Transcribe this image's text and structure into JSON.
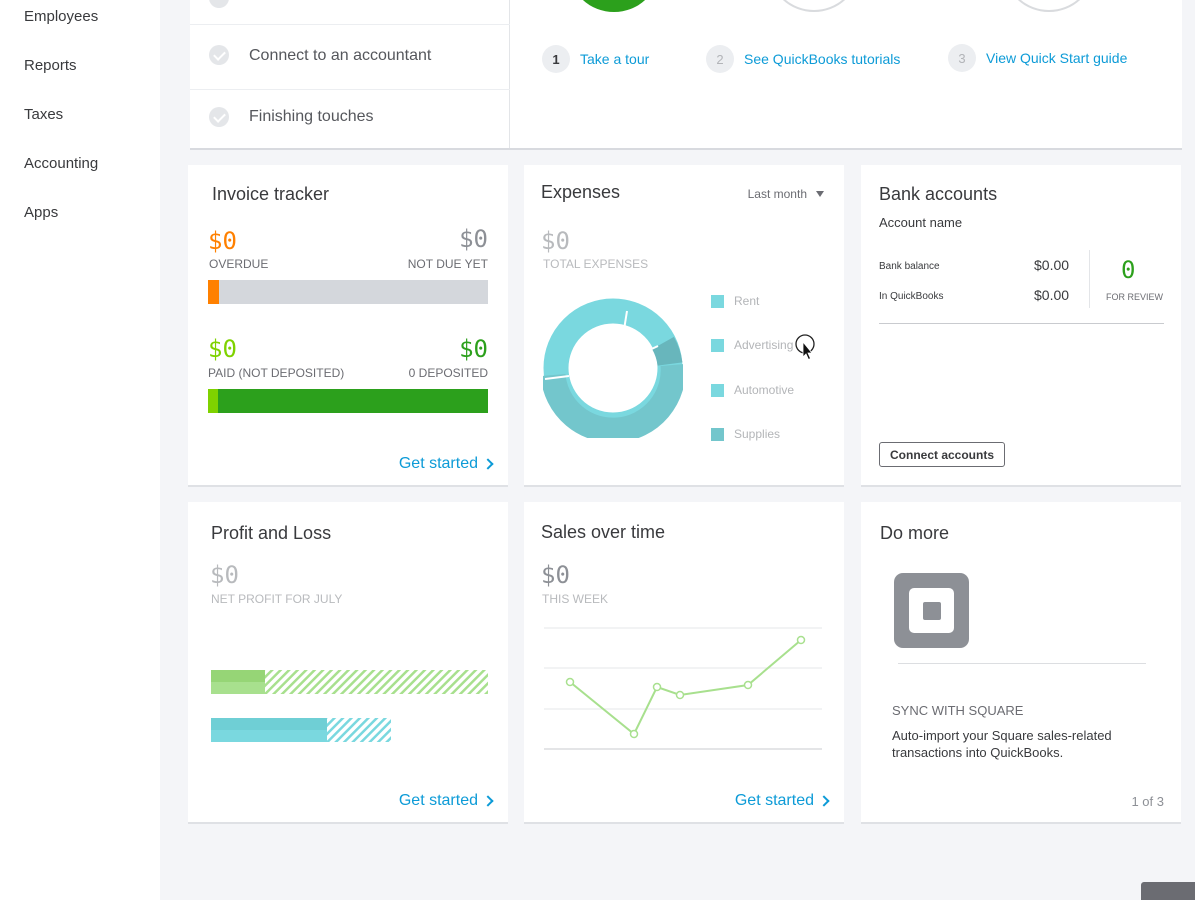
{
  "sidebar": {
    "items": [
      {
        "label": "Employees"
      },
      {
        "label": "Reports"
      },
      {
        "label": "Taxes"
      },
      {
        "label": "Accounting"
      },
      {
        "label": "Apps"
      }
    ]
  },
  "setup": {
    "tasks": [
      {
        "label": "Connect to an accountant"
      },
      {
        "label": "Finishing touches"
      }
    ],
    "steps": [
      {
        "num": "1",
        "label": "Take a tour"
      },
      {
        "num": "2",
        "label": "See QuickBooks tutorials"
      },
      {
        "num": "3",
        "label": "View Quick Start guide"
      }
    ]
  },
  "invoice": {
    "title": "Invoice tracker",
    "overdue_amount": "$0",
    "overdue_label": "OVERDUE",
    "notdue_amount": "$0",
    "notdue_label": "NOT DUE YET",
    "paid_amount": "$0",
    "paid_label": "PAID (NOT DEPOSITED)",
    "deposited_amount": "$0",
    "deposited_label": "0 DEPOSITED",
    "get_started": "Get started",
    "colors": {
      "overdue": "#ff8000",
      "paid": "#2ca01c",
      "light_green": "#7fd200"
    }
  },
  "expenses": {
    "title": "Expenses",
    "period": "Last month",
    "amount": "$0",
    "amount_label": "TOTAL EXPENSES",
    "legend": [
      {
        "label": "Rent",
        "color": "#7ad8df"
      },
      {
        "label": "Advertising",
        "color": "#7ad8df"
      },
      {
        "label": "Automotive",
        "color": "#7ad8df"
      },
      {
        "label": "Supplies",
        "color": "#73c6cc"
      }
    ]
  },
  "bank": {
    "title": "Bank accounts",
    "account_header": "Account name",
    "bank_balance_label": "Bank balance",
    "bank_balance": "$0.00",
    "in_qb_label": "In QuickBooks",
    "in_qb": "$0.00",
    "review_count": "0",
    "review_label": "FOR REVIEW",
    "connect_button": "Connect accounts"
  },
  "pnl": {
    "title": "Profit and Loss",
    "amount": "$0",
    "amount_label": "NET PROFIT FOR JULY",
    "get_started": "Get started"
  },
  "sales": {
    "title": "Sales over time",
    "amount": "$0",
    "amount_label": "THIS WEEK",
    "get_started": "Get started"
  },
  "domore": {
    "title": "Do more",
    "heading": "SYNC WITH SQUARE",
    "body": "Auto-import your Square sales-related transactions into QuickBooks.",
    "pager": "1 of 3"
  }
}
